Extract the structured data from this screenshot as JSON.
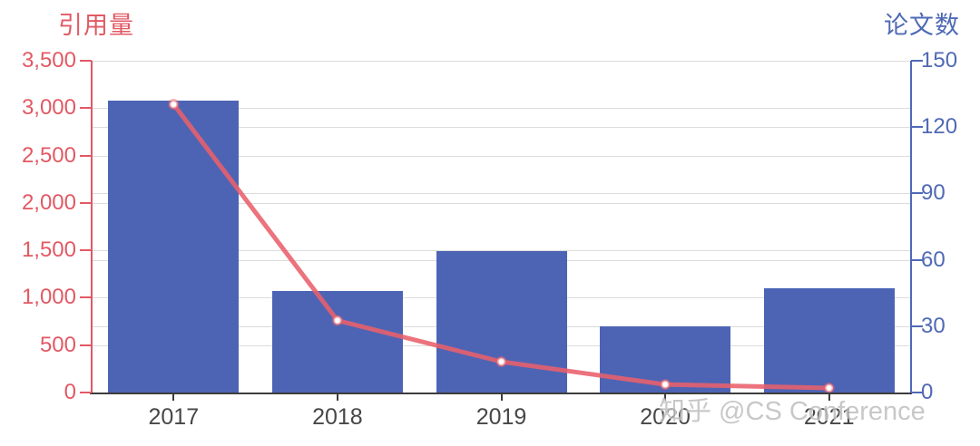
{
  "chart_data": {
    "type": "bar",
    "subtype": "dual-axis bar + line",
    "categories": [
      "2017",
      "2018",
      "2019",
      "2020",
      "2021"
    ],
    "series": [
      {
        "name": "论文数",
        "type": "bar",
        "axis": "right",
        "values": [
          132,
          46,
          64,
          30,
          47
        ]
      },
      {
        "name": "引用量",
        "type": "line",
        "axis": "left",
        "values": [
          3040,
          760,
          325,
          85,
          48
        ]
      }
    ],
    "left_axis": {
      "title": "引用量",
      "min": 0,
      "max": 3500,
      "tick_values": [
        3500,
        3000,
        2500,
        2000,
        1500,
        1000,
        500,
        0
      ],
      "tick_labels": [
        "3,500",
        "3,000",
        "2,500",
        "2,000",
        "1,500",
        "1,000",
        "500",
        "0"
      ]
    },
    "right_axis": {
      "title": "论文数",
      "min": 0,
      "max": 150,
      "tick_values": [
        150,
        120,
        90,
        60,
        30,
        0
      ],
      "tick_labels": [
        "150",
        "120",
        "90",
        "60",
        "30",
        "0"
      ]
    },
    "grid": true,
    "legend_position": "none"
  },
  "colors": {
    "left_accent": "#e25964",
    "right_accent": "#4f69b5",
    "bar_fill": "#4d64b5",
    "line_stroke": "#e9606b",
    "gridline": "#dcdcdc",
    "x_label": "#474747"
  },
  "watermark": "知乎 @CS Conference"
}
